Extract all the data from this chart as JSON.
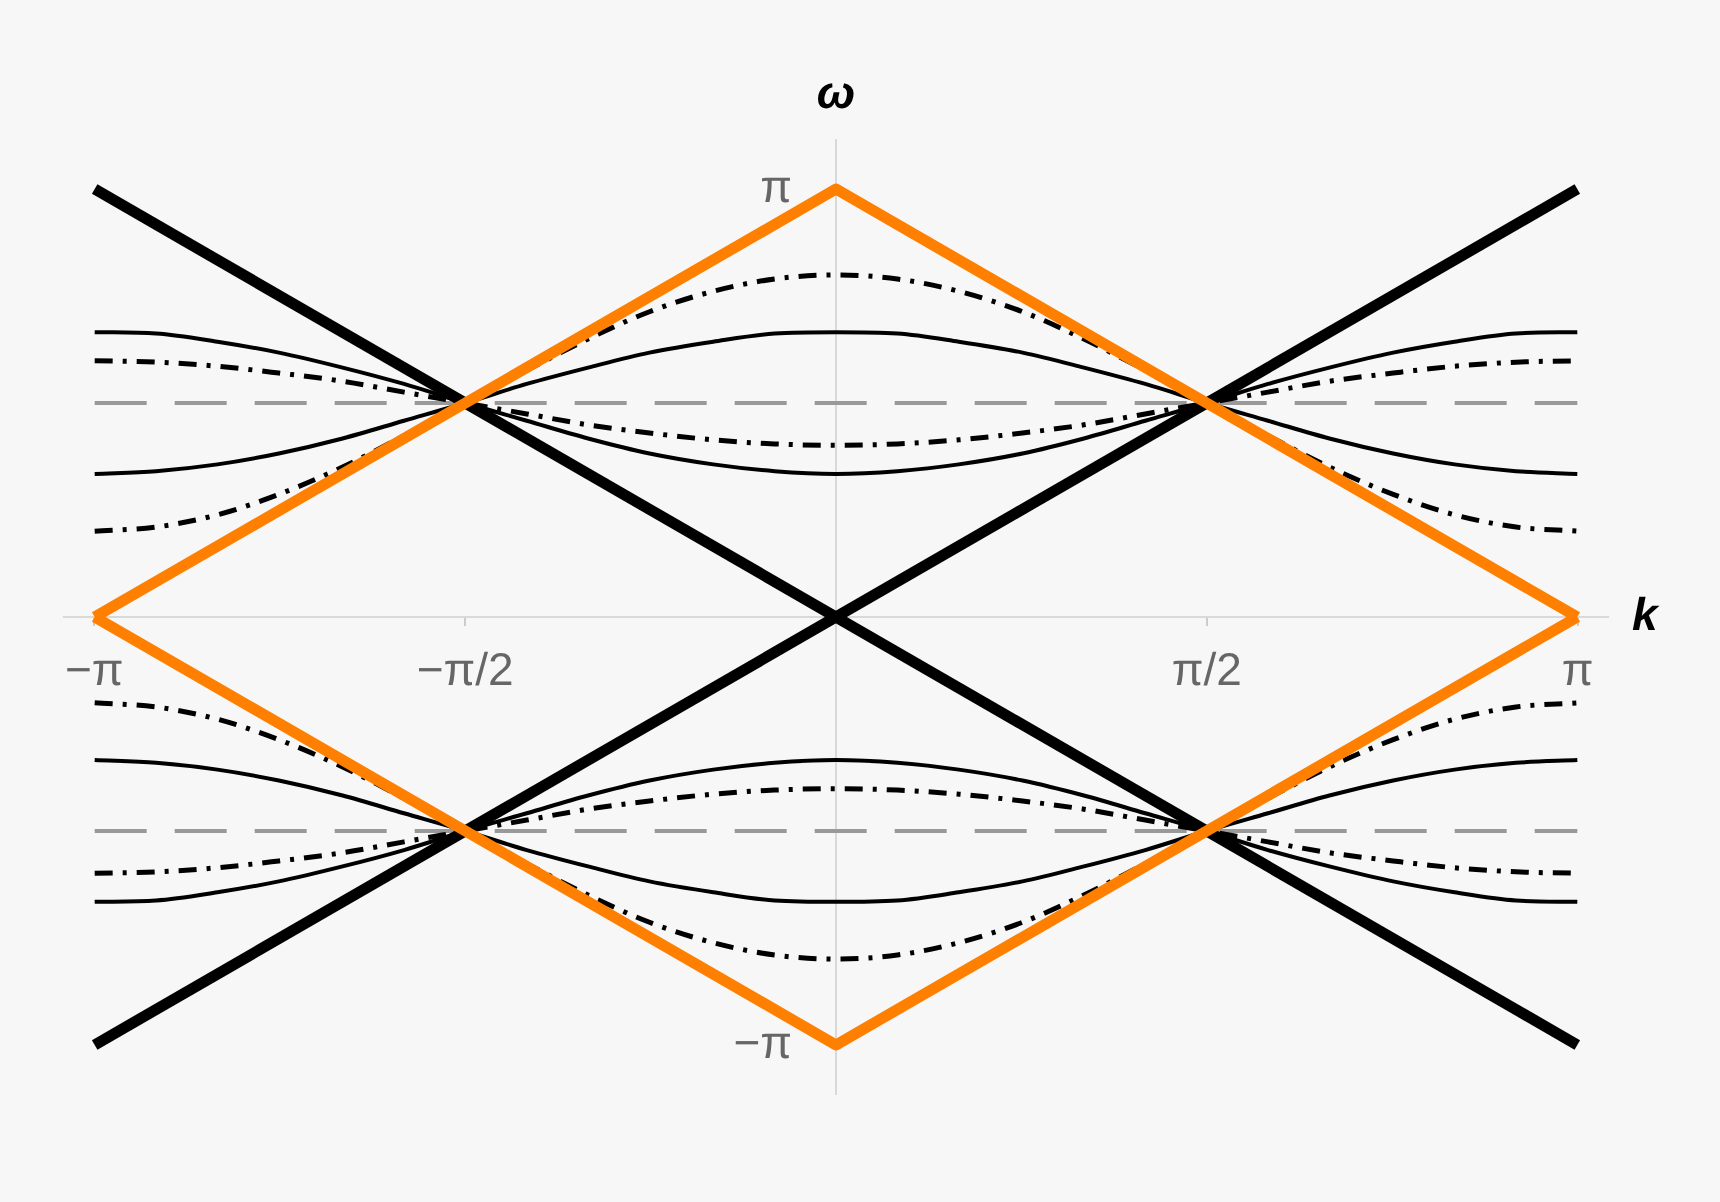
{
  "chart_data": {
    "type": "line",
    "xlabel": "k",
    "ylabel": "ω",
    "x": [
      -3.14,
      -2.88,
      -2.62,
      -2.36,
      -2.09,
      -1.83,
      -1.57,
      -1.31,
      -1.05,
      -0.79,
      -0.52,
      -0.26,
      0,
      0.26,
      0.52,
      0.79,
      1.05,
      1.31,
      1.57,
      1.83,
      2.09,
      2.36,
      2.62,
      2.88,
      3.14
    ],
    "xlim": [
      -3.27,
      3.27
    ],
    "ylim": [
      -3.5,
      3.5
    ],
    "xticks": [
      {
        "value": -3.1416,
        "label": "−π"
      },
      {
        "value": -1.5708,
        "label": "−π/2"
      },
      {
        "value": 1.5708,
        "label": "π/2"
      },
      {
        "value": 3.1416,
        "label": "π"
      }
    ],
    "yticks": [
      {
        "value": -3.1416,
        "label": "−π"
      },
      {
        "value": 3.1416,
        "label": "π"
      }
    ],
    "series": [
      {
        "color": "#999999",
        "line_style": "dashed",
        "x": [
          -3.14,
          3.14
        ],
        "values": [
          1.57,
          1.57
        ]
      },
      {
        "color": "#999999",
        "line_style": "dashed",
        "x": [
          -3.14,
          3.14
        ],
        "values": [
          -1.57,
          -1.57
        ]
      },
      {
        "color": "#000000",
        "line_style": "dashdot",
        "values": [
          0.63,
          0.66,
          0.75,
          0.9,
          1.1,
          1.33,
          1.57,
          1.81,
          2.04,
          2.24,
          2.39,
          2.48,
          2.51,
          2.48,
          2.39,
          2.24,
          2.04,
          1.81,
          1.57,
          1.33,
          1.1,
          0.9,
          0.75,
          0.66,
          0.63
        ]
      },
      {
        "color": "#000000",
        "line_style": "dashdot",
        "values": [
          1.88,
          1.87,
          1.84,
          1.79,
          1.73,
          1.65,
          1.57,
          1.49,
          1.41,
          1.35,
          1.3,
          1.27,
          1.26,
          1.27,
          1.3,
          1.35,
          1.41,
          1.49,
          1.57,
          1.65,
          1.73,
          1.79,
          1.84,
          1.87,
          1.88
        ]
      },
      {
        "color": "#000000",
        "line_style": "dashdot",
        "values": [
          -0.63,
          -0.66,
          -0.75,
          -0.9,
          -1.1,
          -1.33,
          -1.57,
          -1.81,
          -2.04,
          -2.24,
          -2.39,
          -2.48,
          -2.51,
          -2.48,
          -2.39,
          -2.24,
          -2.04,
          -1.81,
          -1.57,
          -1.33,
          -1.1,
          -0.9,
          -0.75,
          -0.66,
          -0.63
        ]
      },
      {
        "color": "#000000",
        "line_style": "dashdot",
        "values": [
          -1.88,
          -1.87,
          -1.84,
          -1.79,
          -1.73,
          -1.65,
          -1.57,
          -1.49,
          -1.41,
          -1.35,
          -1.3,
          -1.27,
          -1.26,
          -1.27,
          -1.3,
          -1.35,
          -1.41,
          -1.49,
          -1.57,
          -1.65,
          -1.73,
          -1.79,
          -1.84,
          -1.87,
          -1.88
        ]
      },
      {
        "color": "#000000",
        "line_style": "solid",
        "values": [
          1.05,
          1.07,
          1.12,
          1.2,
          1.31,
          1.44,
          1.57,
          1.71,
          1.83,
          1.94,
          2.02,
          2.08,
          2.09,
          2.08,
          2.02,
          1.94,
          1.83,
          1.71,
          1.57,
          1.44,
          1.31,
          1.2,
          1.12,
          1.07,
          1.05
        ]
      },
      {
        "color": "#000000",
        "line_style": "solid",
        "values": [
          2.09,
          2.08,
          2.02,
          1.94,
          1.83,
          1.71,
          1.57,
          1.44,
          1.31,
          1.2,
          1.12,
          1.07,
          1.05,
          1.07,
          1.12,
          1.2,
          1.31,
          1.44,
          1.57,
          1.71,
          1.83,
          1.94,
          2.02,
          2.08,
          2.09
        ]
      },
      {
        "color": "#000000",
        "line_style": "solid",
        "values": [
          -1.05,
          -1.07,
          -1.12,
          -1.2,
          -1.31,
          -1.44,
          -1.57,
          -1.71,
          -1.83,
          -1.94,
          -2.02,
          -2.08,
          -2.09,
          -2.08,
          -2.02,
          -1.94,
          -1.83,
          -1.71,
          -1.57,
          -1.44,
          -1.31,
          -1.2,
          -1.12,
          -1.07,
          -1.05
        ]
      },
      {
        "color": "#000000",
        "line_style": "solid",
        "values": [
          -2.09,
          -2.08,
          -2.02,
          -1.94,
          -1.83,
          -1.71,
          -1.57,
          -1.44,
          -1.31,
          -1.2,
          -1.12,
          -1.07,
          -1.05,
          -1.07,
          -1.12,
          -1.2,
          -1.31,
          -1.44,
          -1.57,
          -1.71,
          -1.83,
          -1.94,
          -2.02,
          -2.08,
          -2.09
        ]
      },
      {
        "color": "#000000",
        "line_style": "solid",
        "x": [
          -3.14,
          3.14
        ],
        "values": [
          3.14,
          -3.14
        ]
      },
      {
        "color": "#000000",
        "line_style": "solid",
        "x": [
          -3.14,
          3.14
        ],
        "values": [
          -3.14,
          3.14
        ]
      },
      {
        "color": "#ff8000",
        "line_style": "solid",
        "x": [
          -3.14,
          0,
          3.14
        ],
        "values": [
          0,
          3.14,
          0
        ]
      },
      {
        "color": "#ff8000",
        "line_style": "solid",
        "x": [
          -3.14,
          0,
          3.14
        ],
        "values": [
          0,
          -3.14,
          0
        ]
      }
    ]
  }
}
